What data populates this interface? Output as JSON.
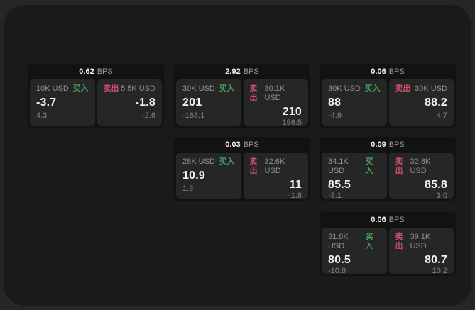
{
  "labels": {
    "bps_unit": "BPS",
    "buy": "买入",
    "sell": "卖出"
  },
  "colors": {
    "page_bg": "#262626",
    "panel_bg": "#1a1a1a",
    "card_bg": "#121212",
    "tile_bg": "#262626",
    "buy_green": "#45a15e",
    "sell_red": "#d1506a",
    "value_white": "#f2f2f2",
    "label_gray": "#8f8f8f"
  },
  "cards": [
    {
      "bps": "0.62",
      "buy": {
        "amount": "10K USD",
        "price": "-3.7",
        "delta": "4.3"
      },
      "sell": {
        "amount": "5.5K USD",
        "price": "-1.8",
        "delta": "-2.6"
      }
    },
    {
      "bps": "2.92",
      "buy": {
        "amount": "30K USD",
        "price": "201",
        "delta": "-188.1"
      },
      "sell": {
        "amount": "30.1K USD",
        "price": "210",
        "delta": "196.5"
      }
    },
    {
      "bps": "0.06",
      "buy": {
        "amount": "30K USD",
        "price": "88",
        "delta": "-4.9"
      },
      "sell": {
        "amount": "30K USD",
        "price": "88.2",
        "delta": "4.7"
      }
    },
    {
      "bps": "0.03",
      "buy": {
        "amount": "28K USD",
        "price": "10.9",
        "delta": "1.3"
      },
      "sell": {
        "amount": "32.6K USD",
        "price": "11",
        "delta": "-1.8"
      }
    },
    {
      "bps": "0.09",
      "buy": {
        "amount": "34.1K USD",
        "price": "85.5",
        "delta": "-3.1"
      },
      "sell": {
        "amount": "32.8K USD",
        "price": "85.8",
        "delta": "3.0"
      }
    },
    {
      "bps": "0.06",
      "buy": {
        "amount": "31.8K USD",
        "price": "80.5",
        "delta": "-10.8"
      },
      "sell": {
        "amount": "39.1K USD",
        "price": "80.7",
        "delta": "10.2"
      }
    }
  ]
}
